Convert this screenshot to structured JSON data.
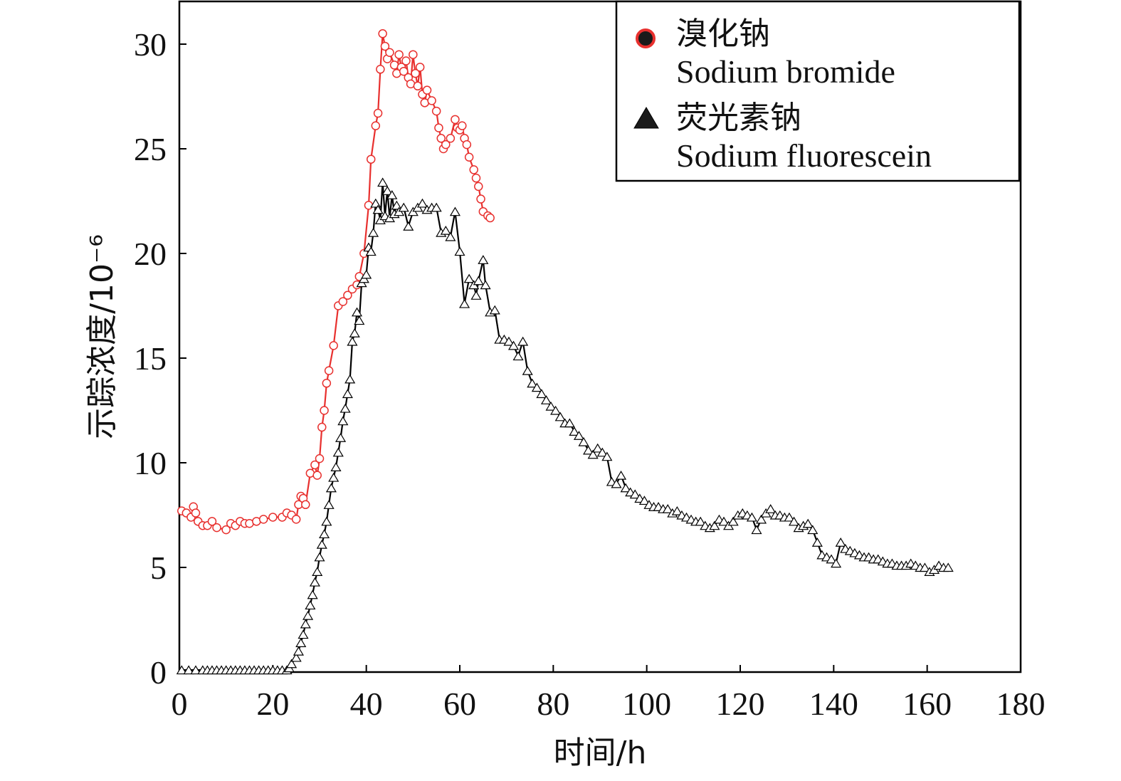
{
  "chart_data": {
    "type": "line",
    "title": "",
    "xlabel": "时间/h",
    "ylabel": "示踪浓度/10⁻⁶",
    "xlim": [
      0,
      180
    ],
    "ylim": [
      0,
      32
    ],
    "xticks": [
      "0",
      "20",
      "40",
      "60",
      "80",
      "100",
      "120",
      "140",
      "160",
      "180"
    ],
    "yticks": [
      "0",
      "5",
      "10",
      "15",
      "20",
      "25",
      "30"
    ],
    "grid": false,
    "legend_position": "top-right",
    "series": [
      {
        "name_cn": "溴化钠",
        "name_en": "Sodium bromide",
        "color": "#e8302e",
        "marker": "circle",
        "points": [
          [
            0.5,
            7.7
          ],
          [
            1.5,
            7.6
          ],
          [
            2.5,
            7.4
          ],
          [
            3,
            7.9
          ],
          [
            3.5,
            7.6
          ],
          [
            4,
            7.2
          ],
          [
            5,
            7.0
          ],
          [
            6,
            7.0
          ],
          [
            7,
            7.2
          ],
          [
            8,
            6.9
          ],
          [
            10,
            6.8
          ],
          [
            11,
            7.1
          ],
          [
            12,
            7.0
          ],
          [
            13,
            7.2
          ],
          [
            14,
            7.1
          ],
          [
            15,
            7.1
          ],
          [
            16.5,
            7.2
          ],
          [
            18,
            7.3
          ],
          [
            20,
            7.4
          ],
          [
            22,
            7.4
          ],
          [
            23,
            7.6
          ],
          [
            24,
            7.5
          ],
          [
            25,
            7.3
          ],
          [
            25.5,
            8.0
          ],
          [
            26,
            8.4
          ],
          [
            26.5,
            8.3
          ],
          [
            27,
            8.0
          ],
          [
            28,
            9.5
          ],
          [
            29,
            9.9
          ],
          [
            29.5,
            9.4
          ],
          [
            30,
            10.2
          ],
          [
            30.5,
            11.7
          ],
          [
            31,
            12.5
          ],
          [
            31.5,
            13.8
          ],
          [
            32,
            14.4
          ],
          [
            33,
            15.6
          ],
          [
            34,
            17.5
          ],
          [
            35,
            17.7
          ],
          [
            36,
            18.0
          ],
          [
            37,
            18.3
          ],
          [
            38,
            18.5
          ],
          [
            38.5,
            18.9
          ],
          [
            39.5,
            20.0
          ],
          [
            40.5,
            22.3
          ],
          [
            41,
            24.5
          ],
          [
            42,
            26.1
          ],
          [
            42.5,
            26.7
          ],
          [
            43,
            28.8
          ],
          [
            43.5,
            30.5
          ],
          [
            44,
            29.9
          ],
          [
            44.5,
            29.3
          ],
          [
            45,
            29.6
          ],
          [
            46,
            29.0
          ],
          [
            46.5,
            28.6
          ],
          [
            47,
            29.5
          ],
          [
            47.5,
            28.9
          ],
          [
            48,
            28.7
          ],
          [
            48.5,
            29.2
          ],
          [
            49,
            28.4
          ],
          [
            49.5,
            28.1
          ],
          [
            50,
            29.5
          ],
          [
            50.5,
            28.6
          ],
          [
            51,
            28.0
          ],
          [
            51.5,
            28.9
          ],
          [
            52,
            27.6
          ],
          [
            52.5,
            27.2
          ],
          [
            53,
            27.8
          ],
          [
            54,
            27.3
          ],
          [
            55,
            26.8
          ],
          [
            55.5,
            26.0
          ],
          [
            56,
            25.5
          ],
          [
            56.5,
            25.0
          ],
          [
            57,
            25.2
          ],
          [
            58,
            25.5
          ],
          [
            59,
            26.4
          ],
          [
            59.5,
            26.0
          ],
          [
            60,
            25.9
          ],
          [
            60.5,
            26.1
          ],
          [
            61,
            25.5
          ],
          [
            61.5,
            25.2
          ],
          [
            62,
            24.6
          ],
          [
            63,
            24.0
          ],
          [
            63.5,
            23.6
          ],
          [
            64,
            23.2
          ],
          [
            64.5,
            22.6
          ],
          [
            65,
            22.0
          ],
          [
            66,
            21.8
          ],
          [
            66.5,
            21.7
          ]
        ]
      },
      {
        "name_cn": "荧光素钠",
        "name_en": "Sodium fluorescein",
        "color": "#000000",
        "marker": "triangle",
        "points": [
          [
            0.5,
            0.1
          ],
          [
            2,
            0.1
          ],
          [
            3.5,
            0.1
          ],
          [
            5,
            0.1
          ],
          [
            6,
            0.1
          ],
          [
            7,
            0.1
          ],
          [
            8,
            0.1
          ],
          [
            9,
            0.1
          ],
          [
            10,
            0.1
          ],
          [
            11,
            0.1
          ],
          [
            12,
            0.1
          ],
          [
            13,
            0.1
          ],
          [
            14,
            0.1
          ],
          [
            15,
            0.1
          ],
          [
            16,
            0.1
          ],
          [
            17,
            0.1
          ],
          [
            18,
            0.1
          ],
          [
            19,
            0.1
          ],
          [
            20,
            0.1
          ],
          [
            21,
            0.1
          ],
          [
            22,
            0.1
          ],
          [
            23,
            0.1
          ],
          [
            23.5,
            0.2
          ],
          [
            24,
            0.4
          ],
          [
            25,
            0.7
          ],
          [
            25.5,
            1.0
          ],
          [
            26,
            1.4
          ],
          [
            26.5,
            1.8
          ],
          [
            27,
            2.3
          ],
          [
            27.5,
            2.7
          ],
          [
            28,
            3.2
          ],
          [
            28.5,
            3.7
          ],
          [
            29,
            4.3
          ],
          [
            29.5,
            4.8
          ],
          [
            30,
            5.5
          ],
          [
            30.5,
            6.1
          ],
          [
            31,
            6.6
          ],
          [
            31.5,
            7.2
          ],
          [
            32,
            8.0
          ],
          [
            32.5,
            8.8
          ],
          [
            33,
            9.3
          ],
          [
            33.5,
            9.8
          ],
          [
            34,
            10.5
          ],
          [
            34.5,
            11.2
          ],
          [
            35,
            12.0
          ],
          [
            35.5,
            12.6
          ],
          [
            36,
            13.3
          ],
          [
            36.5,
            14.0
          ],
          [
            37,
            15.8
          ],
          [
            37.5,
            16.2
          ],
          [
            38,
            17.2
          ],
          [
            38.5,
            16.8
          ],
          [
            39,
            18.6
          ],
          [
            39.5,
            18.8
          ],
          [
            40,
            19.0
          ],
          [
            40.5,
            20.3
          ],
          [
            41,
            20.1
          ],
          [
            41.5,
            21.0
          ],
          [
            42,
            22.4
          ],
          [
            42.5,
            22.1
          ],
          [
            43,
            21.6
          ],
          [
            43.5,
            23.4
          ],
          [
            44,
            21.8
          ],
          [
            44.5,
            23.0
          ],
          [
            45,
            21.7
          ],
          [
            45.5,
            22.8
          ],
          [
            46,
            21.9
          ],
          [
            46.5,
            22.3
          ],
          [
            47,
            22.0
          ],
          [
            48,
            22.2
          ],
          [
            49,
            21.3
          ],
          [
            50,
            22.0
          ],
          [
            51,
            22.2
          ],
          [
            52,
            22.4
          ],
          [
            53,
            22.1
          ],
          [
            54,
            22.2
          ],
          [
            55,
            22.2
          ],
          [
            56,
            21.0
          ],
          [
            57,
            21.1
          ],
          [
            58,
            20.8
          ],
          [
            59,
            22.0
          ],
          [
            60,
            20.1
          ],
          [
            61,
            17.6
          ],
          [
            62,
            18.8
          ],
          [
            63,
            18.5
          ],
          [
            63.5,
            18.0
          ],
          [
            64,
            18.7
          ],
          [
            65,
            19.7
          ],
          [
            65.5,
            18.5
          ],
          [
            66.5,
            17.2
          ],
          [
            67.5,
            17.3
          ],
          [
            68.5,
            15.9
          ],
          [
            69.5,
            15.9
          ],
          [
            70.5,
            15.8
          ],
          [
            71.5,
            15.6
          ],
          [
            72.5,
            15.1
          ],
          [
            73.5,
            15.8
          ],
          [
            74.5,
            14.4
          ],
          [
            75.5,
            13.8
          ],
          [
            76.5,
            13.6
          ],
          [
            77.5,
            13.3
          ],
          [
            78.5,
            13.0
          ],
          [
            79.5,
            12.7
          ],
          [
            80.5,
            12.5
          ],
          [
            81.5,
            12.2
          ],
          [
            82.5,
            11.9
          ],
          [
            83.5,
            11.9
          ],
          [
            84.5,
            11.5
          ],
          [
            85.5,
            11.3
          ],
          [
            86.5,
            11.0
          ],
          [
            87.5,
            10.6
          ],
          [
            88.5,
            10.4
          ],
          [
            89.5,
            10.7
          ],
          [
            90.5,
            10.5
          ],
          [
            91.5,
            10.3
          ],
          [
            92.5,
            9.1
          ],
          [
            93.5,
            9.0
          ],
          [
            94.5,
            9.4
          ],
          [
            95.5,
            8.8
          ],
          [
            96.5,
            8.6
          ],
          [
            97.5,
            8.5
          ],
          [
            98.5,
            8.3
          ],
          [
            99.5,
            8.2
          ],
          [
            100.5,
            8.0
          ],
          [
            101.5,
            7.9
          ],
          [
            102.5,
            7.9
          ],
          [
            103.5,
            7.8
          ],
          [
            104.5,
            7.8
          ],
          [
            105.5,
            7.6
          ],
          [
            106.5,
            7.7
          ],
          [
            107.5,
            7.5
          ],
          [
            108.5,
            7.4
          ],
          [
            109.5,
            7.3
          ],
          [
            110.5,
            7.2
          ],
          [
            111.5,
            7.2
          ],
          [
            112.5,
            7.0
          ],
          [
            113.5,
            6.9
          ],
          [
            114.5,
            7.0
          ],
          [
            115.5,
            7.3
          ],
          [
            116.5,
            7.2
          ],
          [
            117.5,
            7.0
          ],
          [
            118.5,
            7.2
          ],
          [
            119.5,
            7.5
          ],
          [
            120.5,
            7.6
          ],
          [
            121.5,
            7.5
          ],
          [
            122.5,
            7.4
          ],
          [
            123.5,
            6.8
          ],
          [
            124.5,
            7.3
          ],
          [
            125.5,
            7.6
          ],
          [
            126.5,
            7.8
          ],
          [
            127.5,
            7.5
          ],
          [
            128.5,
            7.5
          ],
          [
            129.5,
            7.4
          ],
          [
            130.5,
            7.4
          ],
          [
            131.5,
            7.2
          ],
          [
            132.5,
            6.9
          ],
          [
            133.5,
            7.0
          ],
          [
            134.5,
            7.1
          ],
          [
            135.5,
            6.8
          ],
          [
            136.5,
            6.2
          ],
          [
            137.5,
            5.6
          ],
          [
            138.5,
            5.5
          ],
          [
            139.5,
            5.4
          ],
          [
            140.5,
            5.2
          ],
          [
            141.5,
            6.2
          ],
          [
            142.5,
            5.9
          ],
          [
            143.5,
            5.8
          ],
          [
            144.5,
            5.7
          ],
          [
            145.5,
            5.6
          ],
          [
            146.5,
            5.5
          ],
          [
            147.5,
            5.5
          ],
          [
            148.5,
            5.4
          ],
          [
            149.5,
            5.4
          ],
          [
            150.5,
            5.3
          ],
          [
            151.5,
            5.2
          ],
          [
            152.5,
            5.2
          ],
          [
            153.5,
            5.1
          ],
          [
            154.5,
            5.1
          ],
          [
            155.5,
            5.1
          ],
          [
            156.5,
            5.2
          ],
          [
            157.5,
            5.1
          ],
          [
            158.5,
            5.0
          ],
          [
            159.5,
            5.0
          ],
          [
            160.5,
            4.8
          ],
          [
            161.5,
            4.9
          ],
          [
            162.5,
            5.1
          ],
          [
            163.5,
            5.0
          ],
          [
            164.5,
            5.0
          ]
        ]
      }
    ]
  }
}
